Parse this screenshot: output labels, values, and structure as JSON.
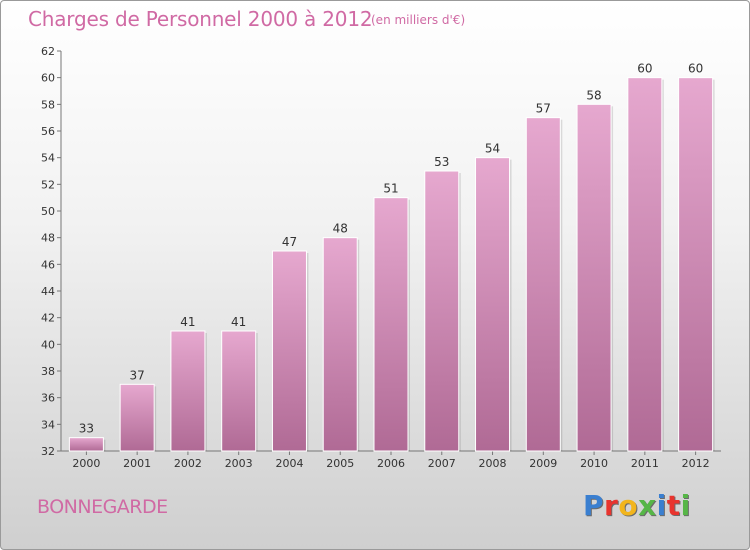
{
  "title": "Charges de Personnel 2000 à 2012",
  "subtitle": "(en milliers d'€)",
  "commune": "BONNEGARDE",
  "brand": {
    "letters": [
      "P",
      "r",
      "o",
      "x",
      "i",
      "t",
      "i"
    ],
    "colors": [
      "#3a7fd0",
      "#e8342e",
      "#f2b51c",
      "#56b647",
      "#3a7fd0",
      "#e8342e",
      "#56b647"
    ]
  },
  "colors": {
    "bar_top": "#e6a8cf",
    "bar_bottom": "#b06a95",
    "title": "#d06aa4"
  },
  "chart_data": {
    "type": "bar",
    "title": "Charges de Personnel 2000 à 2012",
    "subtitle": "(en milliers d'€)",
    "xlabel": "",
    "ylabel": "",
    "categories": [
      "2000",
      "2001",
      "2002",
      "2003",
      "2004",
      "2005",
      "2006",
      "2007",
      "2008",
      "2009",
      "2010",
      "2011",
      "2012"
    ],
    "values": [
      33,
      37,
      41,
      41,
      47,
      48,
      51,
      53,
      54,
      57,
      58,
      60,
      60
    ],
    "ylim": [
      32,
      62
    ],
    "yticks": [
      32,
      34,
      36,
      38,
      40,
      42,
      44,
      46,
      48,
      50,
      52,
      54,
      56,
      58,
      60,
      62
    ],
    "grid": false,
    "legend": "none"
  }
}
